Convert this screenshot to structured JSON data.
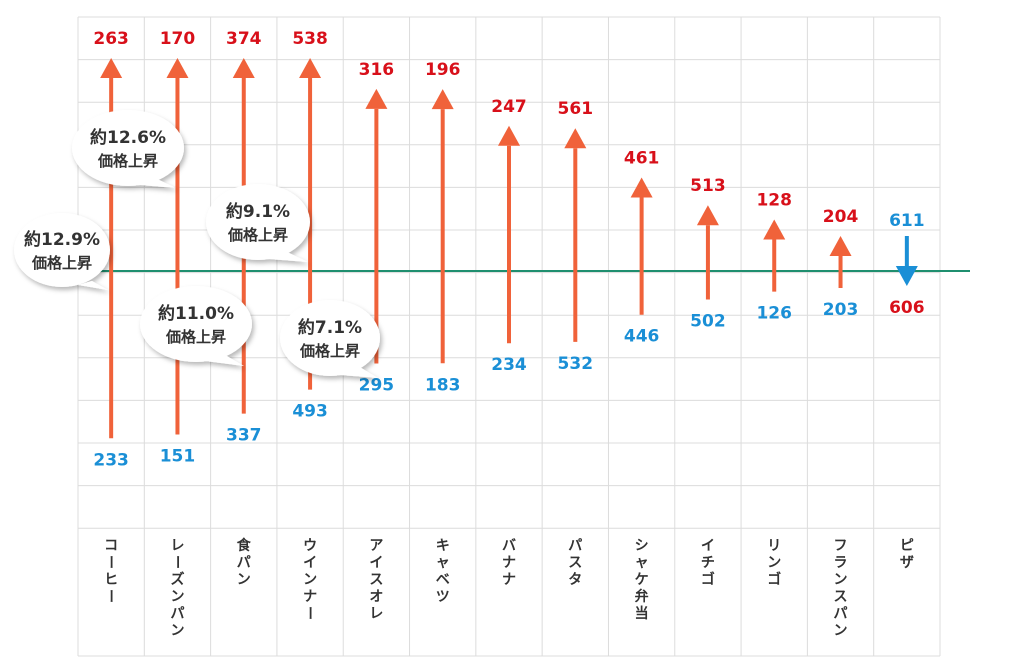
{
  "chart_data": {
    "type": "bar",
    "categories": [
      "コーヒー",
      "レーズンパン",
      "食パン",
      "ウインナー",
      "アイスオレ",
      "キャベツ",
      "バナナ",
      "パスタ",
      "シャケ弁当",
      "イチゴ",
      "リンゴ",
      "フランスパン",
      "ピザ"
    ],
    "series": [
      {
        "values": [
          233,
          151,
          337,
          493,
          295,
          183,
          234,
          532,
          446,
          502,
          126,
          203,
          611
        ]
      },
      {
        "values": [
          263,
          170,
          374,
          538,
          316,
          196,
          247,
          561,
          461,
          513,
          128,
          204,
          606
        ]
      }
    ],
    "annotations": [
      {
        "line1": "約12.9%",
        "line2": "価格上昇"
      },
      {
        "line1": "約12.6%",
        "line2": "価格上昇"
      },
      {
        "line1": "約11.0%",
        "line2": "価格上昇"
      },
      {
        "line1": "約9.1%",
        "line2": "価格上昇"
      },
      {
        "line1": "約7.1%",
        "line2": "価格上昇"
      }
    ],
    "grid": true,
    "colors": {
      "increase": "#f0623a",
      "increase_label": "#d8101a",
      "decrease": "#1a8fd6",
      "old_label": "#1a8fd6",
      "baseline": "#1f8f6f",
      "grid": "#dcdcdc"
    }
  }
}
